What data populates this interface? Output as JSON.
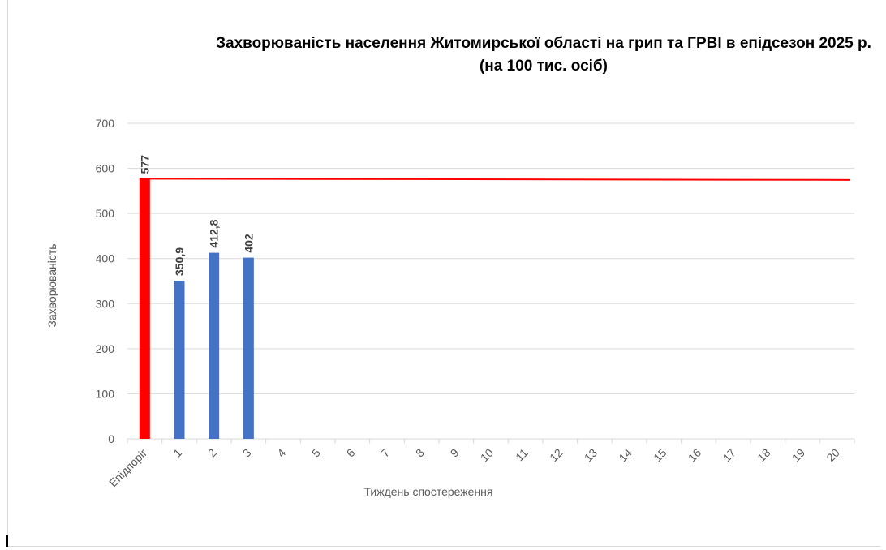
{
  "chart_data": {
    "type": "bar",
    "title": "Захворюваність населення Житомирської області на грип та ГРВІ в епідсезон 2025 р.",
    "subtitle": "(на 100 тис. осіб)",
    "xlabel": "Тиждень спостереження",
    "ylabel": "Захворюваність",
    "ylim": [
      0,
      700
    ],
    "yticks": [
      "0",
      "100",
      "200",
      "300",
      "400",
      "500",
      "600",
      "700"
    ],
    "categories": [
      "Епідпоріг",
      "1",
      "2",
      "3",
      "4",
      "5",
      "6",
      "7",
      "8",
      "9",
      "10",
      "11",
      "12",
      "13",
      "14",
      "15",
      "16",
      "17",
      "18",
      "19",
      "20"
    ],
    "values": [
      577,
      350.9,
      412.8,
      402,
      null,
      null,
      null,
      null,
      null,
      null,
      null,
      null,
      null,
      null,
      null,
      null,
      null,
      null,
      null,
      null,
      null
    ],
    "data_labels": [
      "577",
      "350,9",
      "412,8",
      "402",
      "",
      "",
      "",
      "",
      "",
      "",
      "",
      "",
      "",
      "",
      "",
      "",
      "",
      "",
      "",
      "",
      ""
    ],
    "threshold": {
      "value": 577,
      "color": "#ff0000"
    },
    "colors": {
      "threshold_bar": "#ff0000",
      "bars": "#4472c4",
      "grid": "#d9d9d9"
    },
    "grid": true,
    "legend": "none"
  }
}
